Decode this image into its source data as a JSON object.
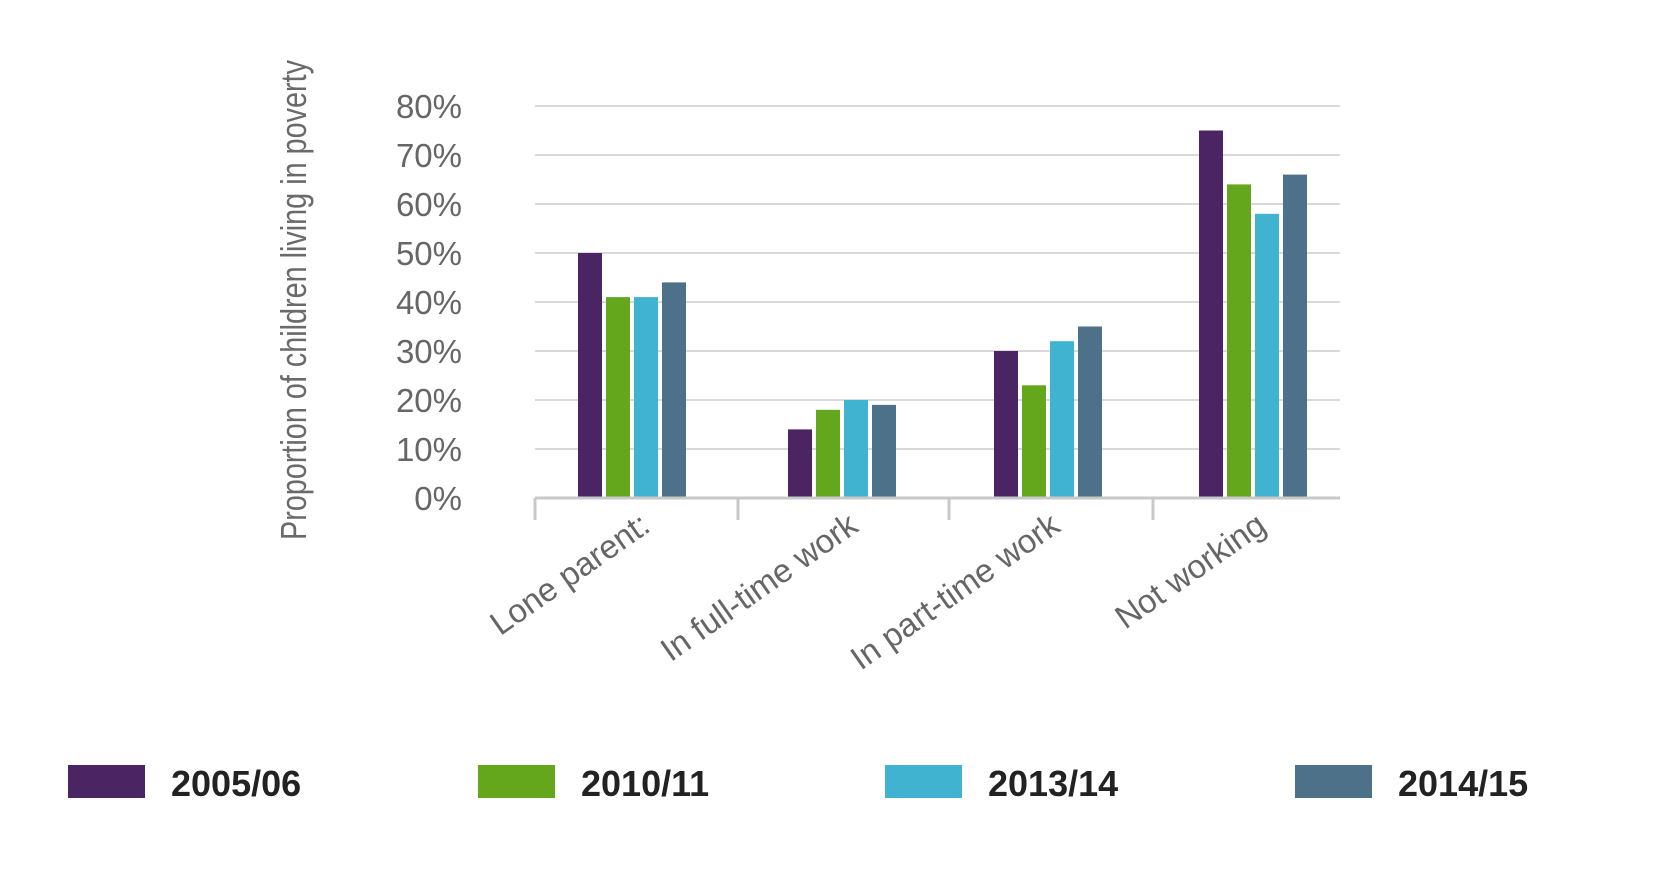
{
  "chart_data": {
    "type": "bar",
    "ylabel": "Proportion of children living in poverty",
    "xlabel": "",
    "categories": [
      "Lone parent:",
      "In full-time work",
      "In part-time work",
      "Not working"
    ],
    "series": [
      {
        "name": "2005/06",
        "color": "#4b2463",
        "values": [
          50,
          14,
          30,
          75
        ]
      },
      {
        "name": "2010/11",
        "color": "#64a71d",
        "values": [
          41,
          18,
          23,
          64
        ]
      },
      {
        "name": "2013/14",
        "color": "#3fb3cf",
        "values": [
          41,
          20,
          32,
          58
        ]
      },
      {
        "name": "2014/15",
        "color": "#4d7188",
        "values": [
          44,
          19,
          35,
          66
        ]
      }
    ],
    "yticks": [
      "0%",
      "10%",
      "20%",
      "30%",
      "40%",
      "50%",
      "60%",
      "70%",
      "80%"
    ],
    "ylim": [
      0,
      80
    ],
    "grid": true,
    "legend": "bottom"
  }
}
